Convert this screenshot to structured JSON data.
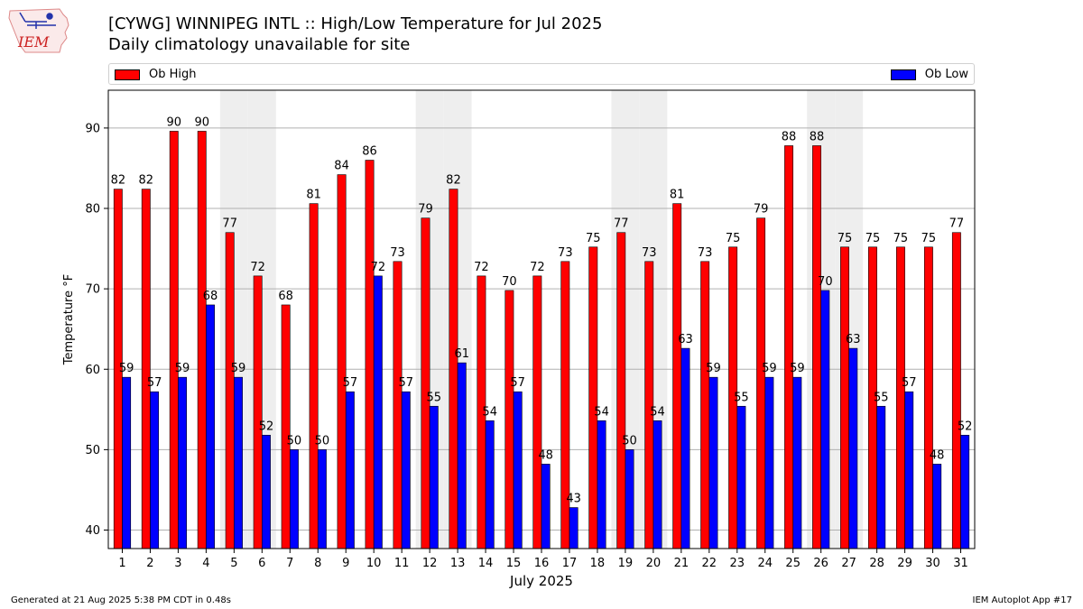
{
  "logo_text": "IEM",
  "title": "[CYWG] WINNIPEG INTL :: High/Low Temperature for Jul 2025",
  "subtitle": "Daily climatology unavailable for site",
  "footer_left": "Generated at 21 Aug 2025 5:38 PM CDT in 0.48s",
  "footer_right": "IEM Autoplot App #17",
  "chart_data": {
    "type": "bar",
    "xlabel": "July 2025",
    "ylabel": "Temperature °F",
    "ylim": [
      37.7,
      94.7
    ],
    "yticks": [
      40,
      50,
      60,
      70,
      80,
      90
    ],
    "grid": true,
    "legend_placement": "top, above plot",
    "categories": [
      "1",
      "2",
      "3",
      "4",
      "5",
      "6",
      "7",
      "8",
      "9",
      "10",
      "11",
      "12",
      "13",
      "14",
      "15",
      "16",
      "17",
      "18",
      "19",
      "20",
      "21",
      "22",
      "23",
      "24",
      "25",
      "26",
      "27",
      "28",
      "29",
      "30",
      "31"
    ],
    "weekend_shaded_days": [
      5,
      6,
      12,
      13,
      19,
      20,
      26,
      27
    ],
    "series": [
      {
        "name": "Ob High",
        "color": "#ff0000",
        "values": [
          82.4,
          82.4,
          89.6,
          89.6,
          77.0,
          71.6,
          68.0,
          80.6,
          84.2,
          86.0,
          73.4,
          78.8,
          82.4,
          71.6,
          69.8,
          71.6,
          73.4,
          75.2,
          77.0,
          73.4,
          80.6,
          73.4,
          75.2,
          78.8,
          87.8,
          87.8,
          75.2,
          75.2,
          75.2,
          75.2,
          77.0
        ],
        "labels": [
          "82",
          "82",
          "90",
          "90",
          "77",
          "72",
          "68",
          "81",
          "84",
          "86",
          "73",
          "79",
          "82",
          "72",
          "70",
          "72",
          "73",
          "75",
          "77",
          "73",
          "81",
          "73",
          "75",
          "79",
          "88",
          "88",
          "75",
          "75",
          "75",
          "75",
          "77"
        ]
      },
      {
        "name": "Ob Low",
        "color": "#0000ff",
        "values": [
          59.0,
          57.2,
          59.0,
          68.0,
          59.0,
          51.8,
          50.0,
          50.0,
          57.2,
          71.6,
          57.2,
          55.4,
          60.8,
          53.6,
          57.2,
          48.2,
          42.8,
          53.6,
          50.0,
          53.6,
          62.6,
          59.0,
          55.4,
          59.0,
          59.0,
          69.8,
          62.6,
          55.4,
          57.2,
          48.2,
          51.8
        ],
        "labels": [
          "59",
          "57",
          "59",
          "68",
          "59",
          "52",
          "50",
          "50",
          "57",
          "72",
          "57",
          "55",
          "61",
          "54",
          "57",
          "48",
          "43",
          "54",
          "50",
          "54",
          "63",
          "59",
          "55",
          "59",
          "59",
          "70",
          "63",
          "55",
          "57",
          "48",
          "52"
        ]
      }
    ]
  }
}
